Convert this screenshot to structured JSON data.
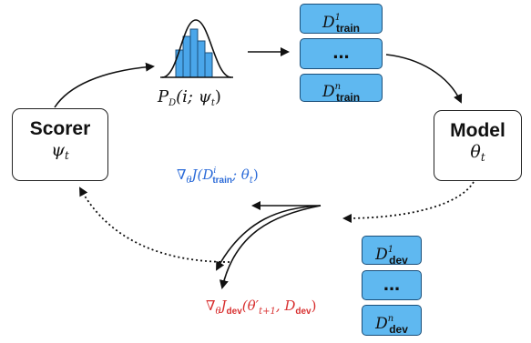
{
  "scorer": {
    "name": "Scorer",
    "symbol": "ψ",
    "symbol_sub": "t"
  },
  "model": {
    "name": "Model",
    "symbol": "θ",
    "symbol_sub": "t"
  },
  "distribution": {
    "label_main": "P",
    "label_sub": "D",
    "label_args": "(i; ψ",
    "label_args_sub": "t",
    "label_close": ")"
  },
  "train_sets": [
    {
      "letter": "D",
      "sup": "1",
      "sub": "train"
    },
    {
      "dots": "..."
    },
    {
      "letter": "D",
      "sup": "n",
      "sub": "train"
    }
  ],
  "dev_sets": [
    {
      "letter": "D",
      "sup": "1",
      "sub": "dev"
    },
    {
      "dots": "..."
    },
    {
      "letter": "D",
      "sup": "n",
      "sub": "dev"
    }
  ],
  "train_gradient": {
    "nabla": "∇",
    "nabla_sub": "θ",
    "J": "J(D",
    "D_sup": "i",
    "D_sub": "train",
    "rest": "; θ",
    "rest_sub": "t",
    "close": ")"
  },
  "dev_gradient": {
    "nabla": "∇",
    "nabla_sub": "θ",
    "J": "J",
    "J_sub": "dev",
    "open": "(θ′",
    "open_sub": "t+1",
    "mid": ", D",
    "mid_sub": "dev",
    "close": ")"
  },
  "colors": {
    "train_gradient": "#2a6ad8",
    "dev_gradient": "#d83030",
    "data_fill": "#5fb8f0",
    "hist_bar": "#4aa6ea"
  }
}
